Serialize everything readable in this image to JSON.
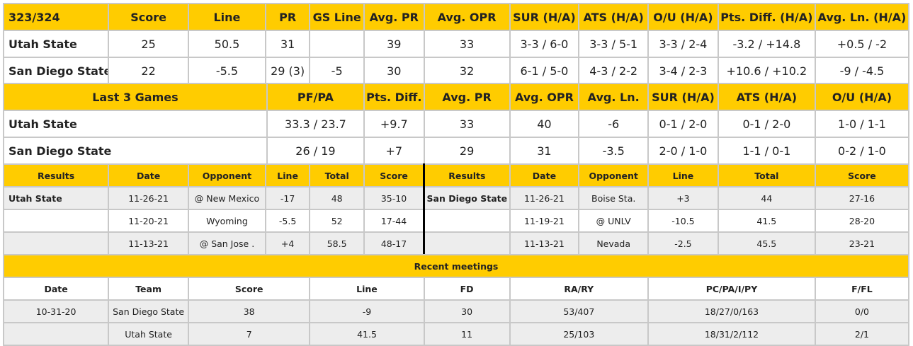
{
  "matchup": {
    "header": [
      "323/324",
      "Score",
      "Line",
      "PR",
      "GS Line",
      "Avg. PR",
      "Avg. OPR",
      "SUR (H/A)",
      "ATS (H/A)",
      "O/U (H/A)",
      "Pts. Diff. (H/A)",
      "Avg. Ln. (H/A)"
    ],
    "rows": [
      [
        "Utah State",
        "25",
        "50.5",
        "31",
        "",
        "39",
        "33",
        "3-3 / 6-0",
        "3-3 / 5-1",
        "3-3 / 2-4",
        "-3.2 / +14.8",
        "+0.5 / -2"
      ],
      [
        "San Diego State",
        "22",
        "-5.5",
        "29 (3)",
        "-5",
        "30",
        "32",
        "6-1 / 5-0",
        "4-3 / 2-2",
        "3-4 / 2-3",
        "+10.6 / +10.2",
        "-9 / -4.5"
      ]
    ]
  },
  "last3": {
    "header": [
      "Last 3 Games",
      "PF/PA",
      "Pts. Diff.",
      "Avg. PR",
      "Avg. OPR",
      "Avg. Ln.",
      "SUR (H/A)",
      "ATS (H/A)",
      "O/U (H/A)"
    ],
    "rows": [
      [
        "Utah State",
        "33.3 / 23.7",
        "+9.7",
        "33",
        "40",
        "-6",
        "0-1 / 2-0",
        "0-1 / 2-0",
        "1-0 / 1-1"
      ],
      [
        "San Diego State",
        "26 / 19",
        "+7",
        "29",
        "31",
        "-3.5",
        "2-0 / 1-0",
        "1-1 / 0-1",
        "0-2 / 1-0"
      ]
    ]
  },
  "results": {
    "header": [
      "Results",
      "Date",
      "Opponent",
      "Line",
      "Total",
      "Score",
      "Results",
      "Date",
      "Opponent",
      "Line",
      "Total",
      "Score"
    ],
    "rows": [
      [
        "Utah State",
        "11-26-21",
        "@ New Mexico",
        "-17",
        "48",
        "35-10",
        "San Diego State",
        "11-26-21",
        "Boise Sta.",
        "+3",
        "44",
        "27-16"
      ],
      [
        "",
        "11-20-21",
        "Wyoming",
        "-5.5",
        "52",
        "17-44",
        "",
        "11-19-21",
        "@ UNLV",
        "-10.5",
        "41.5",
        "28-20"
      ],
      [
        "",
        "11-13-21",
        "@ San Jose .",
        "+4",
        "58.5",
        "48-17",
        "",
        "11-13-21",
        "Nevada",
        "-2.5",
        "45.5",
        "23-21"
      ]
    ]
  },
  "meetings": {
    "title": "Recent meetings",
    "header": [
      "Date",
      "Team",
      "Score",
      "Line",
      "FD",
      "RA/RY",
      "PC/PA/I/PY",
      "F/FL"
    ],
    "rows": [
      [
        "10-31-20",
        "San Diego State",
        "38",
        "-9",
        "30",
        "53/407",
        "18/27/0/163",
        "0/0"
      ],
      [
        "",
        "Utah State",
        "7",
        "41.5",
        "11",
        "25/103",
        "18/31/2/112",
        "2/1"
      ]
    ]
  },
  "colors": {
    "header": "#ffcc00",
    "row_alt": "#ededed",
    "border": "#c8c8c8"
  }
}
